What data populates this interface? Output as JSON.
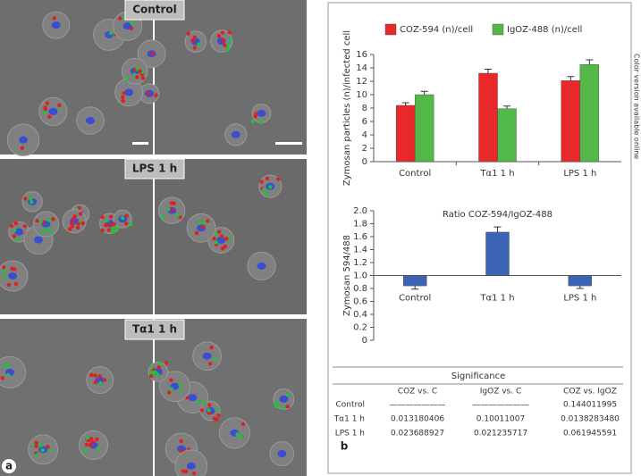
{
  "panels": [
    {
      "label": "Control"
    },
    {
      "label": "LPS 1 h"
    },
    {
      "label": "Tα1 1 h"
    }
  ],
  "panel_letter_a": "a",
  "panel_letter_b": "b",
  "side_note": "Color version available online",
  "chart_data": [
    {
      "type": "bar",
      "ylabel": "Zymosan particles (n)/infected cell",
      "categories": [
        "Control",
        "Tα1 1 h",
        "LPS 1 h"
      ],
      "series": [
        {
          "name": "COZ-594 (n)/cell",
          "color": "#e8282a",
          "values": [
            8.4,
            13.2,
            12.1
          ],
          "errors": [
            0.4,
            0.6,
            0.6
          ]
        },
        {
          "name": "IgOZ-488 (n)/cell",
          "color": "#52b848",
          "values": [
            10.0,
            7.9,
            14.5
          ],
          "errors": [
            0.5,
            0.4,
            0.7
          ]
        }
      ],
      "ylim": [
        0,
        16
      ],
      "yticks": [
        0,
        2,
        4,
        6,
        8,
        10,
        12,
        14,
        16
      ]
    },
    {
      "type": "bar",
      "title": "Ratio COZ-594/IgOZ-488",
      "ylabel": "Zymosan 594/488",
      "categories": [
        "Control",
        "Tα1 1 h",
        "LPS 1 h"
      ],
      "values": [
        0.84,
        1.67,
        0.84
      ],
      "errors": [
        0.05,
        0.08,
        0.04
      ],
      "color": "#3b64b5",
      "baseline": 1,
      "ylim": [
        0,
        2
      ],
      "yticks": [
        0,
        {
          "value": 0.2,
          "label": "0.2"
        },
        {
          "value": 0.4,
          "label": "0.4"
        },
        {
          "value": 0.6,
          "label": "0.6"
        },
        {
          "value": 0.8,
          "label": "0.8"
        },
        {
          "value": 1,
          "label": "1.0"
        },
        {
          "value": 1.2,
          "label": "1.2"
        },
        {
          "value": 1.4,
          "label": "1.4"
        },
        {
          "value": 1.6,
          "label": "1.6"
        },
        {
          "value": 1.8,
          "label": "1.8"
        },
        {
          "value": 2,
          "label": "2.0"
        }
      ]
    }
  ],
  "table": {
    "title": "Significance",
    "header": [
      "COZ vs. C",
      "IgOZ vs. C",
      "COZ vs. IgOZ"
    ],
    "rows": [
      {
        "label": "Control",
        "cells": [
          "———————",
          "———————",
          "0.144011995"
        ]
      },
      {
        "label": "Tα1 1 h",
        "cells": [
          "0.013180406",
          "0.10011007",
          "0.0138283480"
        ]
      },
      {
        "label": "LPS 1 h",
        "cells": [
          "0.023688927",
          "0.021235717",
          "0.061945591"
        ]
      }
    ],
    "highlight": [
      [
        false,
        false,
        false
      ],
      [
        true,
        false,
        true
      ],
      [
        true,
        true,
        false
      ]
    ],
    "highlight_color": "#e03030"
  }
}
